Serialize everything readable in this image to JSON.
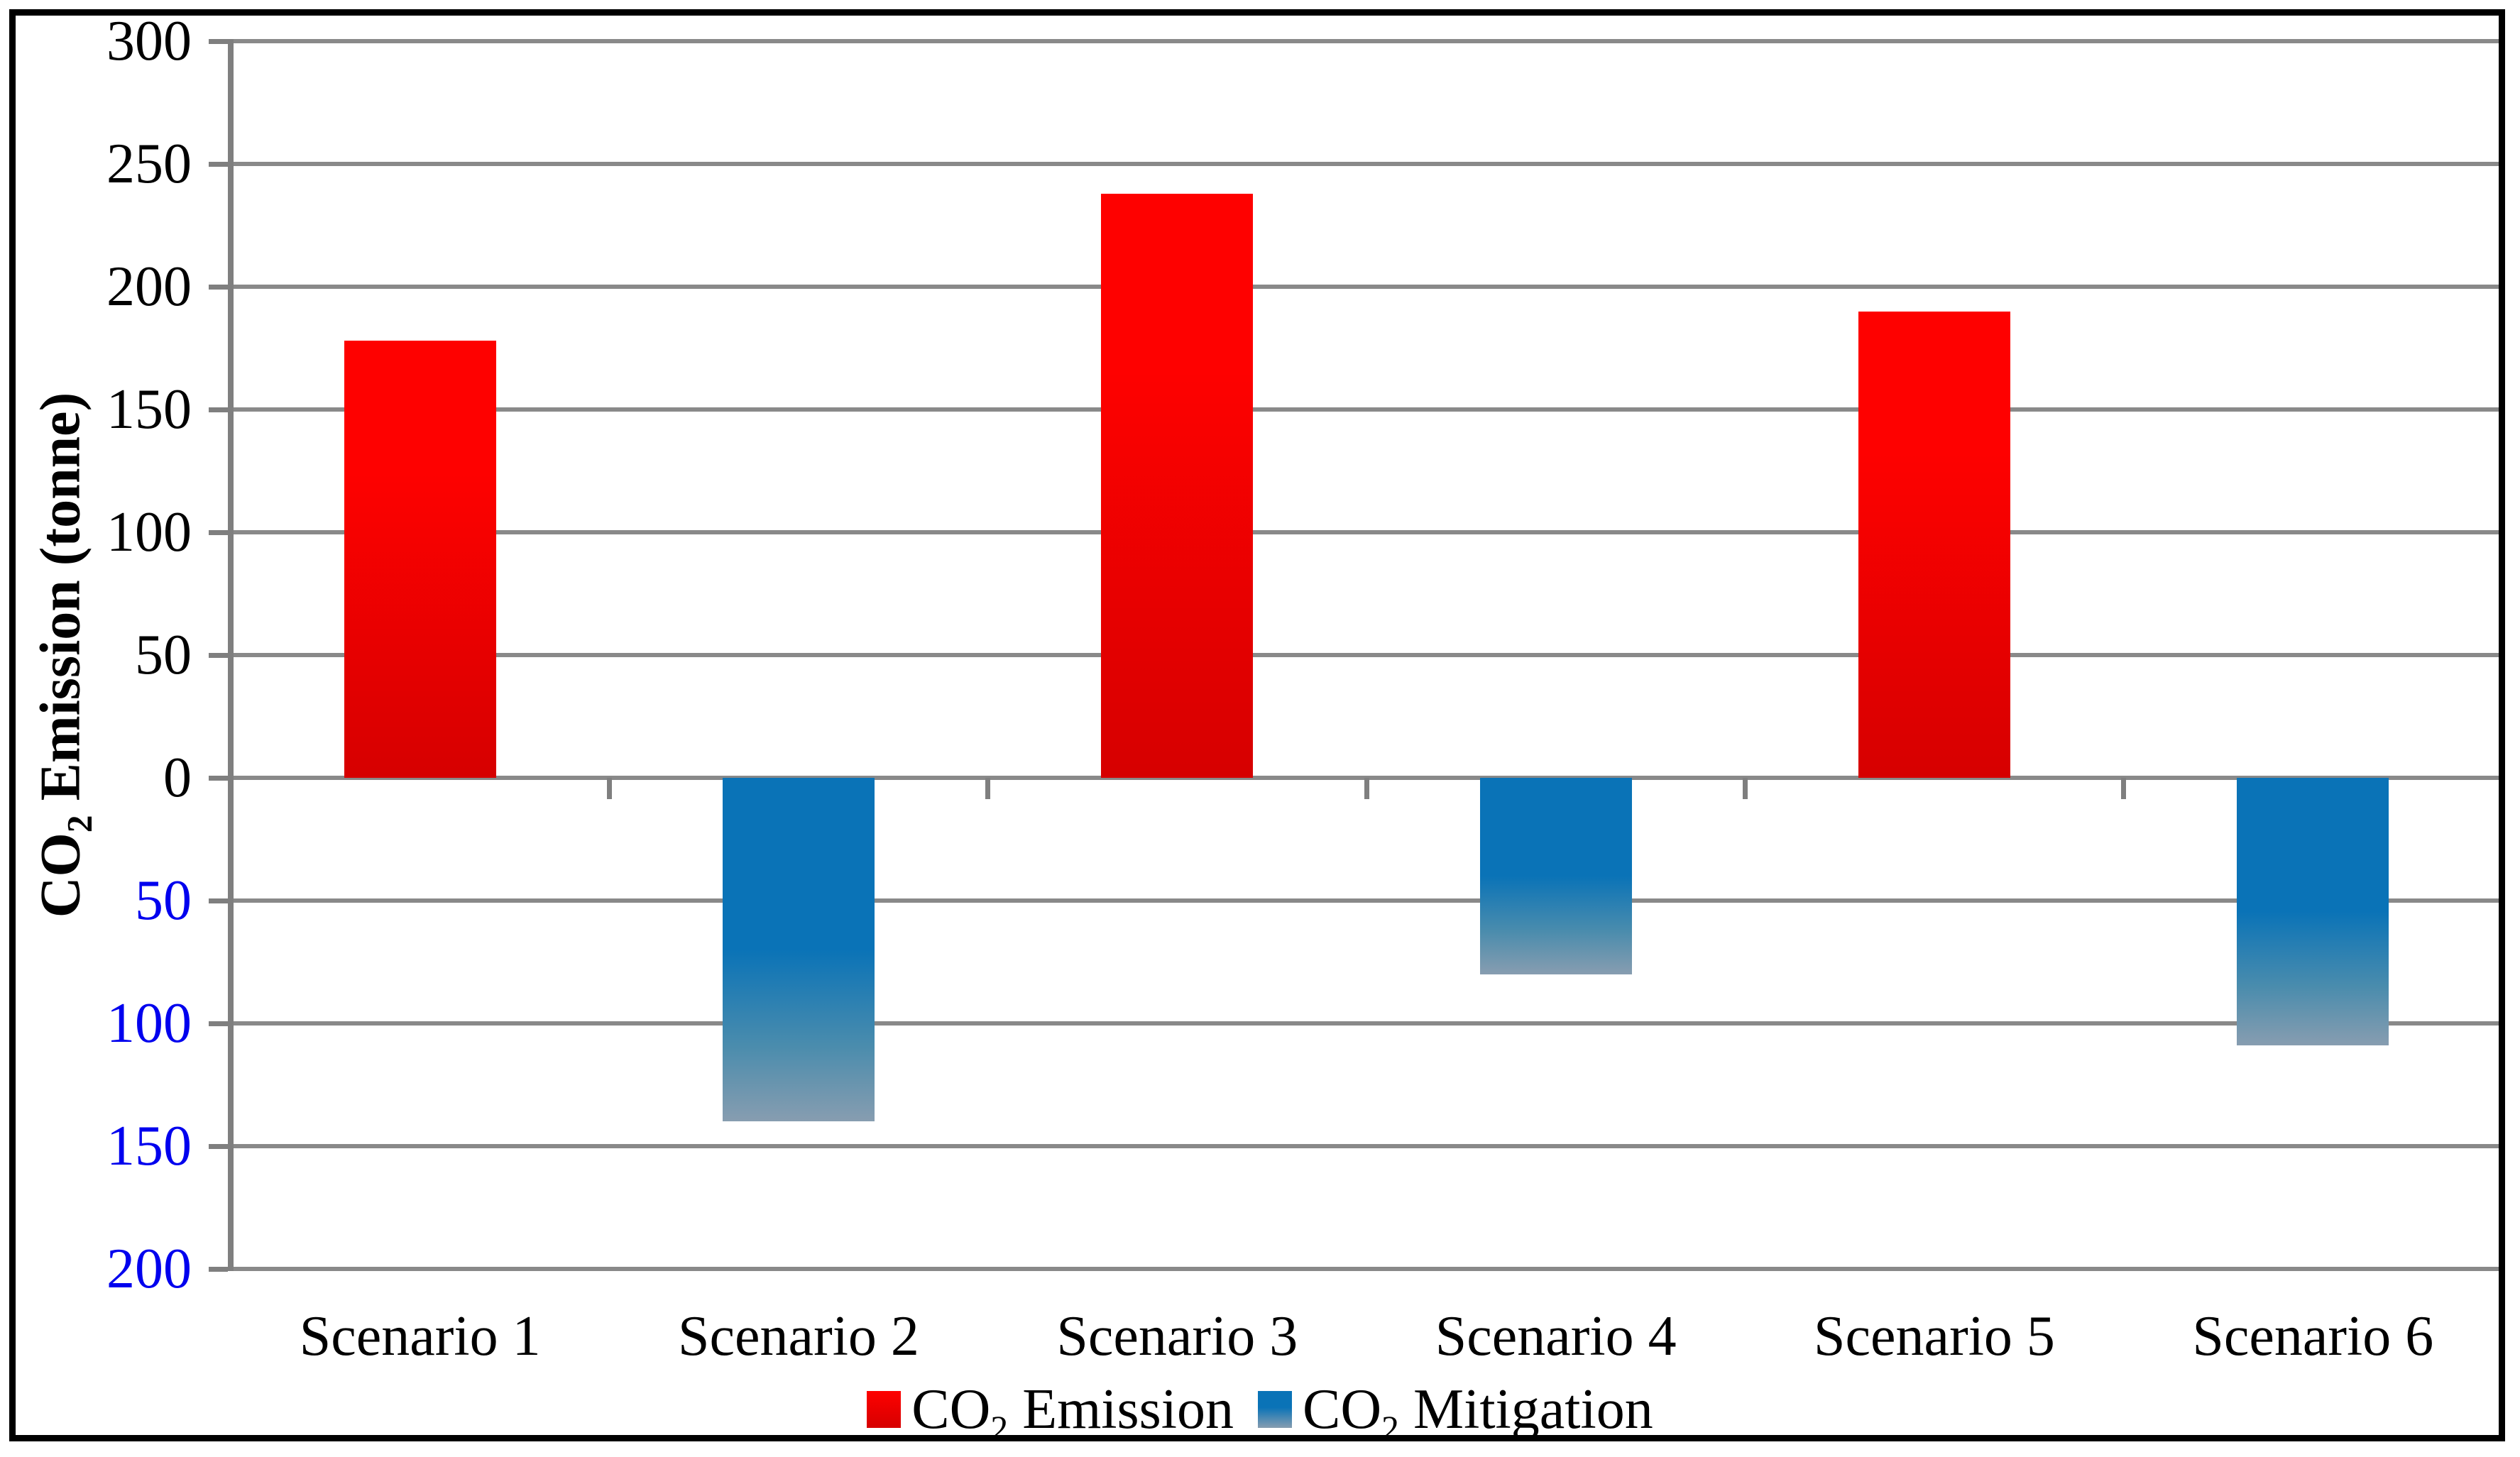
{
  "ui": {
    "y_axis_title": {
      "prefix": "CO",
      "sub": "2",
      "rest": " Emission (tonne)"
    },
    "y_axis_ticks": [
      {
        "value": 300,
        "label": "300",
        "color": "#000000"
      },
      {
        "value": 250,
        "label": "250",
        "color": "#000000"
      },
      {
        "value": 200,
        "label": "200",
        "color": "#000000"
      },
      {
        "value": 150,
        "label": "150",
        "color": "#000000"
      },
      {
        "value": 100,
        "label": "100",
        "color": "#000000"
      },
      {
        "value": 50,
        "label": "50",
        "color": "#000000"
      },
      {
        "value": 0,
        "label": "0",
        "color": "#000000"
      },
      {
        "value": -50,
        "label": "50",
        "color": "#0000EE"
      },
      {
        "value": -100,
        "label": "100",
        "color": "#0000EE"
      },
      {
        "value": -150,
        "label": "150",
        "color": "#0000EE"
      },
      {
        "value": -200,
        "label": "200",
        "color": "#0000EE"
      }
    ],
    "legend": {
      "items": [
        {
          "prefix": "CO",
          "sub": "2",
          "rest": " Emission",
          "swatch": "emission"
        },
        {
          "prefix": "CO",
          "sub": "2",
          "rest": " Mitigation",
          "swatch": "mitigation"
        }
      ]
    }
  },
  "colors": {
    "background": "#ffffff",
    "border": "#000000",
    "grid": "#898989",
    "axis": "#7f7f7f",
    "positive_tick_label": "#000000",
    "negative_tick_label": "#0000EE",
    "emission_top": "#fe0100",
    "emission_bottom": "#d60000",
    "mitigation_top": "#0a73b7",
    "mitigation_mid": "#4a8cad",
    "mitigation_bottom": "#879db0"
  },
  "chart_data": {
    "type": "bar",
    "categories": [
      "Scenario 1",
      "Scenario 2",
      "Scenario 3",
      "Scenario 4",
      "Scenario 5",
      "Scenario 6"
    ],
    "series": [
      {
        "name": "CO₂ Emission",
        "color_top": "#fe0100",
        "color_bottom": "#d60000",
        "values": [
          178,
          null,
          238,
          null,
          190,
          null
        ]
      },
      {
        "name": "CO₂ Mitigation",
        "color_top": "#0a73b7",
        "color_bottom": "#879db0",
        "values": [
          null,
          -140,
          null,
          -80,
          null,
          -109
        ]
      }
    ],
    "title": "",
    "xlabel": "",
    "ylabel": "CO₂ Emission (tonne)",
    "ylim": [
      -200,
      300
    ],
    "ytick_step": 50,
    "grid": true,
    "legend_position": "bottom",
    "note": "Negative y-axis tick labels are shown as absolute values in blue; mitigation bars hang below zero with a blue-to-gray gradient; category tick marks sit below the zero axis line at group boundaries."
  }
}
